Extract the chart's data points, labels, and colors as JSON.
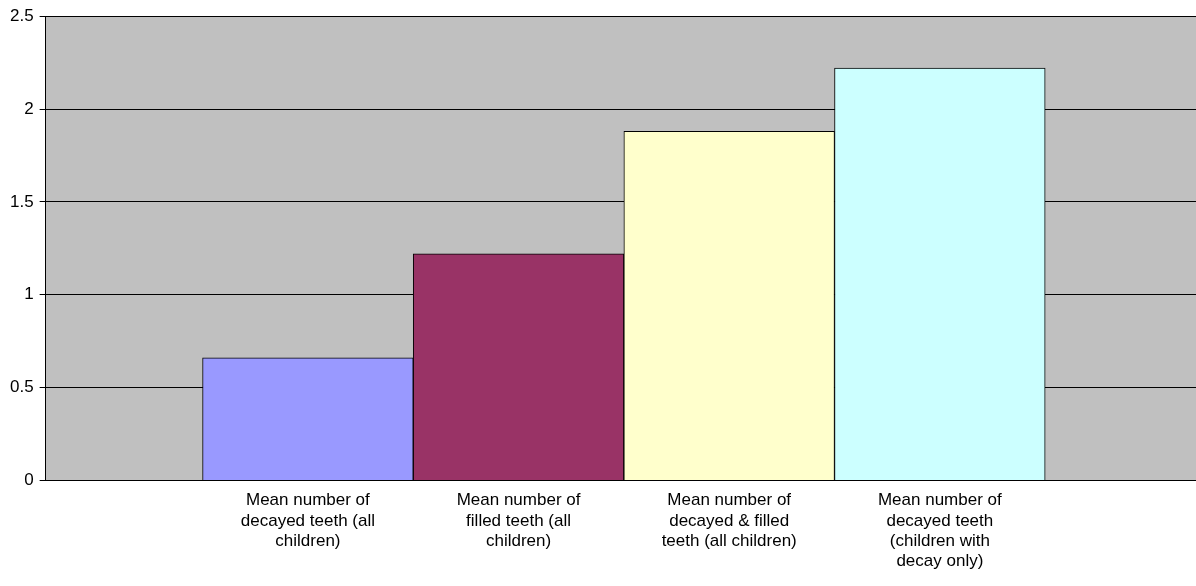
{
  "chart_data": {
    "type": "bar",
    "categories": [
      "Mean number of decayed teeth (all children)",
      "Mean number of filled teeth (all children)",
      "Mean number of decayed & filled teeth (all children)",
      "Mean number of decayed teeth (children with decay only)"
    ],
    "values": [
      0.66,
      1.22,
      1.88,
      2.22
    ],
    "colors": [
      "#9999ff",
      "#993366",
      "#ffffcc",
      "#ccffff"
    ],
    "ylim": [
      0,
      2.5
    ],
    "yticks": [
      0,
      0.5,
      1,
      1.5,
      2,
      2.5
    ],
    "grid": "y",
    "legend": false
  }
}
